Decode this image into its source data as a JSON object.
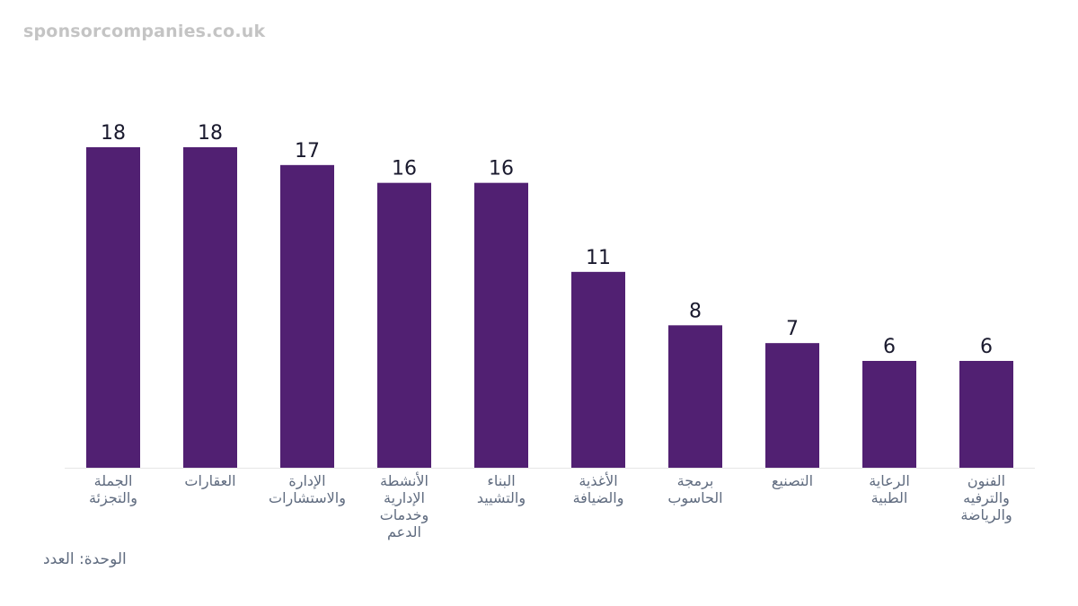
{
  "watermark": "sponsorcompanies.co.uk",
  "unit_label": "الوحدة: العدد",
  "colors": {
    "bar": "#512072",
    "baseline": "#e6e6e6",
    "value_text": "#1a1a2e",
    "category_text": "#5f6b7f"
  },
  "chart_data": {
    "type": "bar",
    "categories": [
      [
        "الجملة",
        "والتجزئة"
      ],
      [
        "العقارات"
      ],
      [
        "الإدارة",
        "والاستشارات"
      ],
      [
        "الأنشطة",
        "الإدارية",
        "وخدمات",
        "الدعم"
      ],
      [
        "البناء",
        "والتشييد"
      ],
      [
        "الأغذية",
        "والضيافة"
      ],
      [
        "برمجة",
        "الحاسوب"
      ],
      [
        "التصنيع"
      ],
      [
        "الرعاية",
        "الطبية"
      ],
      [
        "الفنون",
        "والترفيه",
        "والرياضة"
      ]
    ],
    "values": [
      18,
      18,
      17,
      16,
      16,
      11,
      8,
      7,
      6,
      6
    ],
    "ylim": [
      0,
      18
    ],
    "grid": false,
    "legend": "none"
  }
}
